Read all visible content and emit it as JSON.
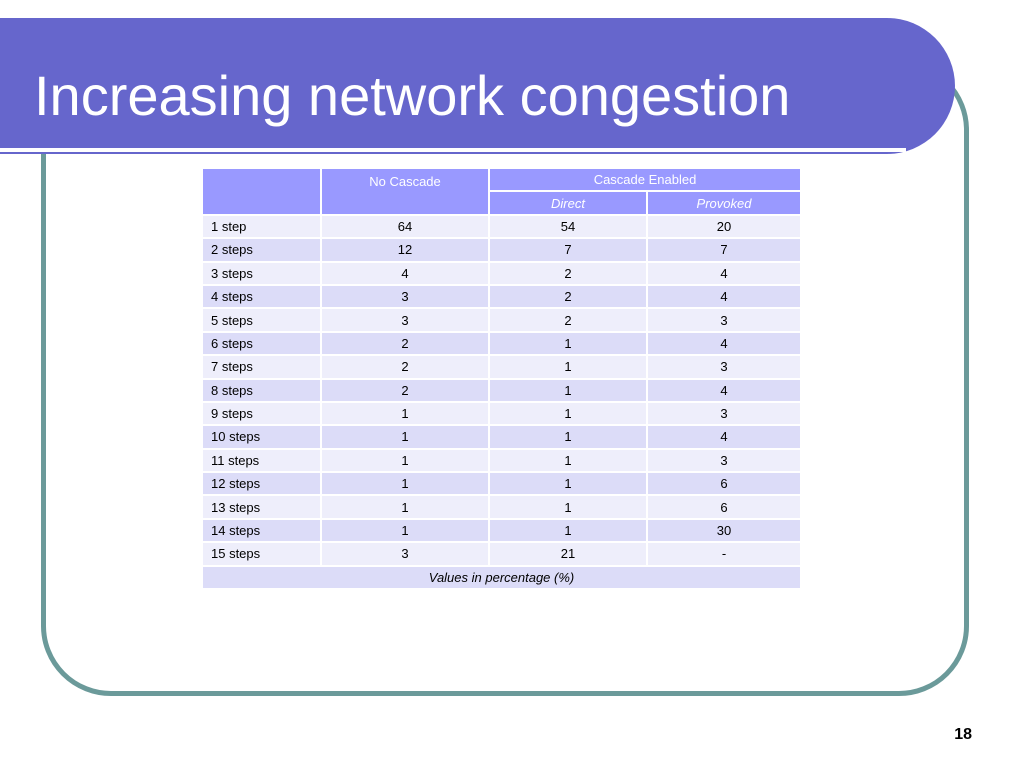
{
  "slide": {
    "title": "Increasing network congestion",
    "page_number": "18"
  },
  "table": {
    "header": {
      "no_cascade": "No Cascade",
      "cascade_enabled": "Cascade Enabled",
      "direct": "Direct",
      "provoked": "Provoked"
    },
    "rows": [
      {
        "label": "1 step",
        "no_cascade": "64",
        "direct": "54",
        "provoked": "20"
      },
      {
        "label": "2 steps",
        "no_cascade": "12",
        "direct": "7",
        "provoked": "7"
      },
      {
        "label": "3 steps",
        "no_cascade": "4",
        "direct": "2",
        "provoked": "4"
      },
      {
        "label": "4 steps",
        "no_cascade": "3",
        "direct": "2",
        "provoked": "4"
      },
      {
        "label": "5 steps",
        "no_cascade": "3",
        "direct": "2",
        "provoked": "3"
      },
      {
        "label": "6 steps",
        "no_cascade": "2",
        "direct": "1",
        "provoked": "4"
      },
      {
        "label": "7 steps",
        "no_cascade": "2",
        "direct": "1",
        "provoked": "3"
      },
      {
        "label": "8 steps",
        "no_cascade": "2",
        "direct": "1",
        "provoked": "4"
      },
      {
        "label": "9 steps",
        "no_cascade": "1",
        "direct": "1",
        "provoked": "3"
      },
      {
        "label": "10 steps",
        "no_cascade": "1",
        "direct": "1",
        "provoked": "4"
      },
      {
        "label": "11 steps",
        "no_cascade": "1",
        "direct": "1",
        "provoked": "3"
      },
      {
        "label": "12 steps",
        "no_cascade": "1",
        "direct": "1",
        "provoked": "6"
      },
      {
        "label": "13 steps",
        "no_cascade": "1",
        "direct": "1",
        "provoked": "6"
      },
      {
        "label": "14 steps",
        "no_cascade": "1",
        "direct": "1",
        "provoked": "30"
      },
      {
        "label": "15 steps",
        "no_cascade": "3",
        "direct": "21",
        "provoked": "-"
      }
    ],
    "footer": "Values in percentage (%)"
  },
  "colors": {
    "title_bar": "#6666cc",
    "frame_border": "#6b9a9a",
    "header_fill": "#9999ff",
    "row_light": "#eeeefb",
    "row_dark": "#dcdcf8"
  }
}
